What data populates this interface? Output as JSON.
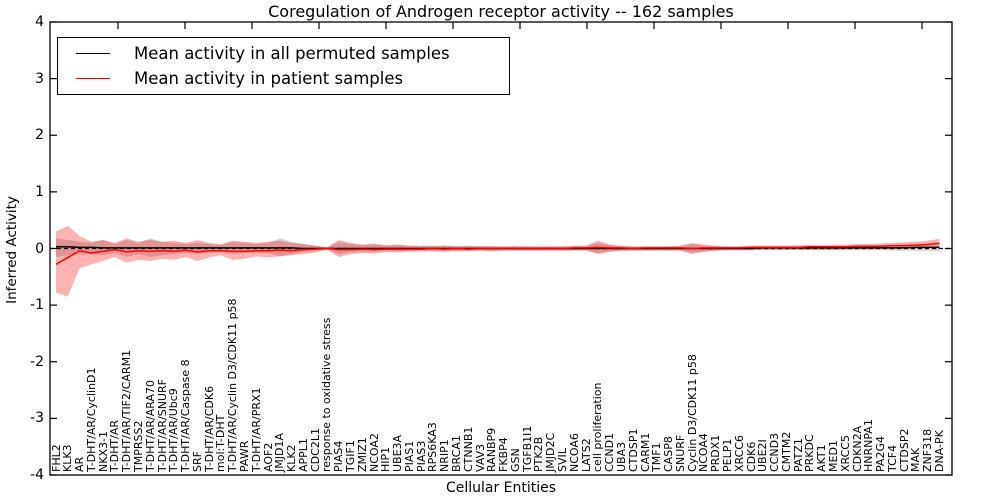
{
  "chart_data": {
    "type": "line",
    "title": "Coregulation of Androgen receptor activity -- 162 samples",
    "xlabel": "Cellular Entities",
    "ylabel": "Inferred Activity",
    "ylim": [
      -4,
      4
    ],
    "yticks": [
      "4",
      "3",
      "2",
      "1",
      "0",
      "-1",
      "-2",
      "-3",
      "-4"
    ],
    "grid": false,
    "legend_position": "upper left",
    "zero_line": {
      "style": "dashed",
      "color": "#000000"
    },
    "categories": [
      "FHL2",
      "KLK3",
      "AR",
      "T-DHT/AR/CyclinD1",
      "NKX3-1",
      "T-DHT/AR",
      "T-DHT/AR/TIF2/CARM1",
      "TMPRSS2",
      "T-DHT/AR/ARA70",
      "T-DHT/AR/SNURF",
      "T-DHT/AR/Ubc9",
      "T-DHT/AR/Caspase 8",
      "SRF",
      "T-DHT/AR/CDK6",
      "mol:T-DHT",
      "T-DHT/AR/Cyclin D3/CDK11 p58",
      "PAWR",
      "T-DHT/AR/PRX1",
      "AOF2",
      "JMJD1A",
      "KLK2",
      "APPL1",
      "CDC2L1",
      "response to oxidative stress",
      "PIAS4",
      "TGIF1",
      "ZMIZ1",
      "NCOA2",
      "HIP1",
      "UBE3A",
      "PIAS1",
      "PIAS3",
      "RPS6KA3",
      "NRIP1",
      "BRCA1",
      "CTNNB1",
      "VAV3",
      "RANBP9",
      "FKBP4",
      "GSN",
      "TGFB1I1",
      "PTK2B",
      "JMJD2C",
      "SVIL",
      "NCOA6",
      "LATS2",
      "cell proliferation",
      "CCND1",
      "UBA3",
      "CTDSP1",
      "CARM1",
      "TMF1",
      "CASP8",
      "SNURF",
      "Cyclin D3/CDK11 p58",
      "NCOA4",
      "PRDX1",
      "PELP1",
      "XRCC6",
      "CDK6",
      "UBE2I",
      "CCND3",
      "CMTM2",
      "PATZ1",
      "PRKDC",
      "AKT1",
      "MED1",
      "XRCC5",
      "CDKN2A",
      "HNRNPA1",
      "PA2G4",
      "TCF4",
      "CTDSP2",
      "MAK",
      "ZNF318",
      "DNA-PK"
    ],
    "series": [
      {
        "name": "Mean activity in all permuted samples",
        "color": "#000000",
        "values": [
          0.03,
          0.03,
          0.02,
          0.02,
          0.01,
          0.01,
          0.01,
          0.01,
          0.01,
          0.01,
          0.01,
          0.01,
          0.01,
          0.01,
          0.01,
          0.01,
          0.01,
          0.01,
          0.01,
          0.01,
          0.01,
          0.0,
          0.0,
          0.0,
          0.0,
          0.0,
          0.0,
          0.0,
          0.0,
          0.0,
          0.0,
          0.0,
          0.0,
          0.0,
          0.0,
          0.0,
          0.0,
          0.0,
          0.0,
          0.0,
          0.0,
          0.0,
          0.0,
          0.0,
          0.0,
          0.0,
          0.0,
          0.0,
          0.0,
          0.0,
          0.0,
          0.0,
          0.0,
          0.0,
          0.0,
          0.0,
          0.0,
          0.0,
          0.0,
          0.0,
          0.01,
          0.01,
          0.01,
          0.01,
          0.01,
          0.01,
          0.01,
          0.01,
          0.01,
          0.01,
          0.01,
          0.01,
          0.01,
          0.02,
          0.02,
          0.02
        ]
      },
      {
        "name": "Mean activity in patient samples",
        "color": "#ff0000",
        "values": [
          -0.28,
          -0.16,
          -0.04,
          -0.08,
          -0.05,
          -0.02,
          -0.06,
          -0.04,
          -0.05,
          -0.04,
          -0.05,
          -0.03,
          -0.06,
          -0.04,
          -0.04,
          -0.05,
          -0.05,
          -0.04,
          -0.04,
          -0.03,
          -0.04,
          -0.02,
          -0.01,
          0.0,
          -0.02,
          -0.02,
          -0.01,
          -0.02,
          -0.01,
          -0.01,
          -0.01,
          -0.01,
          0.0,
          -0.01,
          0.0,
          -0.01,
          0.0,
          0.0,
          0.0,
          0.0,
          0.0,
          0.0,
          0.0,
          0.0,
          0.01,
          0.01,
          0.02,
          0.01,
          0.01,
          0.0,
          0.01,
          0.01,
          0.01,
          0.01,
          0.0,
          0.01,
          0.01,
          0.01,
          0.01,
          0.02,
          0.02,
          0.02,
          0.02,
          0.02,
          0.03,
          0.03,
          0.03,
          0.03,
          0.04,
          0.04,
          0.04,
          0.05,
          0.05,
          0.06,
          0.07,
          0.09
        ]
      }
    ],
    "bands": [
      {
        "name": "std band of permuted samples",
        "color": "#808080",
        "opacity": 0.35,
        "upper": [
          0.18,
          0.15,
          0.12,
          0.1,
          0.15,
          0.08,
          0.15,
          0.1,
          0.18,
          0.12,
          0.1,
          0.08,
          0.1,
          0.08,
          0.06,
          0.12,
          0.1,
          0.08,
          0.1,
          0.18,
          0.12,
          0.08,
          0.05,
          0.02,
          0.12,
          0.08,
          0.06,
          0.07,
          0.05,
          0.06,
          0.05,
          0.04,
          0.04,
          0.05,
          0.04,
          0.04,
          0.04,
          0.04,
          0.03,
          0.04,
          0.03,
          0.03,
          0.03,
          0.03,
          0.04,
          0.04,
          0.1,
          0.06,
          0.04,
          0.03,
          0.03,
          0.03,
          0.03,
          0.04,
          0.08,
          0.05,
          0.04,
          0.03,
          0.03,
          0.03,
          0.03,
          0.03,
          0.03,
          0.03,
          0.03,
          0.03,
          0.03,
          0.03,
          0.04,
          0.04,
          0.04,
          0.04,
          0.04,
          0.05,
          0.05,
          0.06
        ],
        "lower": [
          -0.15,
          -0.12,
          -0.1,
          -0.1,
          -0.12,
          -0.08,
          -0.15,
          -0.1,
          -0.15,
          -0.12,
          -0.1,
          -0.08,
          -0.1,
          -0.08,
          -0.06,
          -0.1,
          -0.08,
          -0.08,
          -0.08,
          -0.14,
          -0.1,
          -0.06,
          -0.05,
          -0.02,
          -0.1,
          -0.07,
          -0.06,
          -0.06,
          -0.05,
          -0.05,
          -0.04,
          -0.04,
          -0.04,
          -0.04,
          -0.04,
          -0.04,
          -0.03,
          -0.04,
          -0.03,
          -0.03,
          -0.03,
          -0.03,
          -0.03,
          -0.03,
          -0.03,
          -0.03,
          -0.08,
          -0.05,
          -0.04,
          -0.03,
          -0.03,
          -0.03,
          -0.03,
          -0.03,
          -0.07,
          -0.05,
          -0.04,
          -0.03,
          -0.03,
          -0.03,
          -0.03,
          -0.03,
          -0.03,
          -0.03,
          -0.03,
          -0.03,
          -0.03,
          -0.03,
          -0.03,
          -0.03,
          -0.03,
          -0.04,
          -0.04,
          -0.04,
          -0.04,
          -0.05
        ]
      },
      {
        "name": "std band of patient samples",
        "color": "#ff0000",
        "opacity": 0.3,
        "upper": [
          0.3,
          0.4,
          0.22,
          0.12,
          0.15,
          0.1,
          0.18,
          0.12,
          0.15,
          0.12,
          0.14,
          0.1,
          0.15,
          0.1,
          0.08,
          0.14,
          0.12,
          0.1,
          0.12,
          0.14,
          0.1,
          0.08,
          0.05,
          0.02,
          0.15,
          0.1,
          0.07,
          0.09,
          0.06,
          0.07,
          0.05,
          0.05,
          0.05,
          0.05,
          0.04,
          0.05,
          0.04,
          0.04,
          0.04,
          0.04,
          0.04,
          0.04,
          0.04,
          0.04,
          0.05,
          0.05,
          0.14,
          0.07,
          0.05,
          0.04,
          0.04,
          0.04,
          0.04,
          0.05,
          0.1,
          0.07,
          0.05,
          0.04,
          0.04,
          0.05,
          0.05,
          0.05,
          0.05,
          0.06,
          0.06,
          0.06,
          0.07,
          0.07,
          0.08,
          0.08,
          0.09,
          0.1,
          0.11,
          0.12,
          0.14,
          0.17
        ],
        "lower": [
          -0.78,
          -0.85,
          -0.35,
          -0.28,
          -0.22,
          -0.15,
          -0.25,
          -0.2,
          -0.22,
          -0.18,
          -0.2,
          -0.15,
          -0.22,
          -0.16,
          -0.12,
          -0.2,
          -0.18,
          -0.14,
          -0.16,
          -0.14,
          -0.12,
          -0.1,
          -0.07,
          -0.02,
          -0.15,
          -0.1,
          -0.08,
          -0.09,
          -0.06,
          -0.07,
          -0.06,
          -0.05,
          -0.05,
          -0.06,
          -0.05,
          -0.05,
          -0.04,
          -0.05,
          -0.04,
          -0.04,
          -0.04,
          -0.04,
          -0.04,
          -0.04,
          -0.04,
          -0.04,
          -0.1,
          -0.06,
          -0.04,
          -0.04,
          -0.04,
          -0.04,
          -0.04,
          -0.04,
          -0.1,
          -0.06,
          -0.04,
          -0.03,
          -0.03,
          -0.03,
          -0.02,
          -0.02,
          -0.02,
          -0.02,
          -0.02,
          -0.02,
          -0.02,
          -0.01,
          -0.01,
          -0.01,
          0.0,
          0.0,
          0.0,
          0.01,
          0.01,
          0.02
        ]
      }
    ]
  }
}
